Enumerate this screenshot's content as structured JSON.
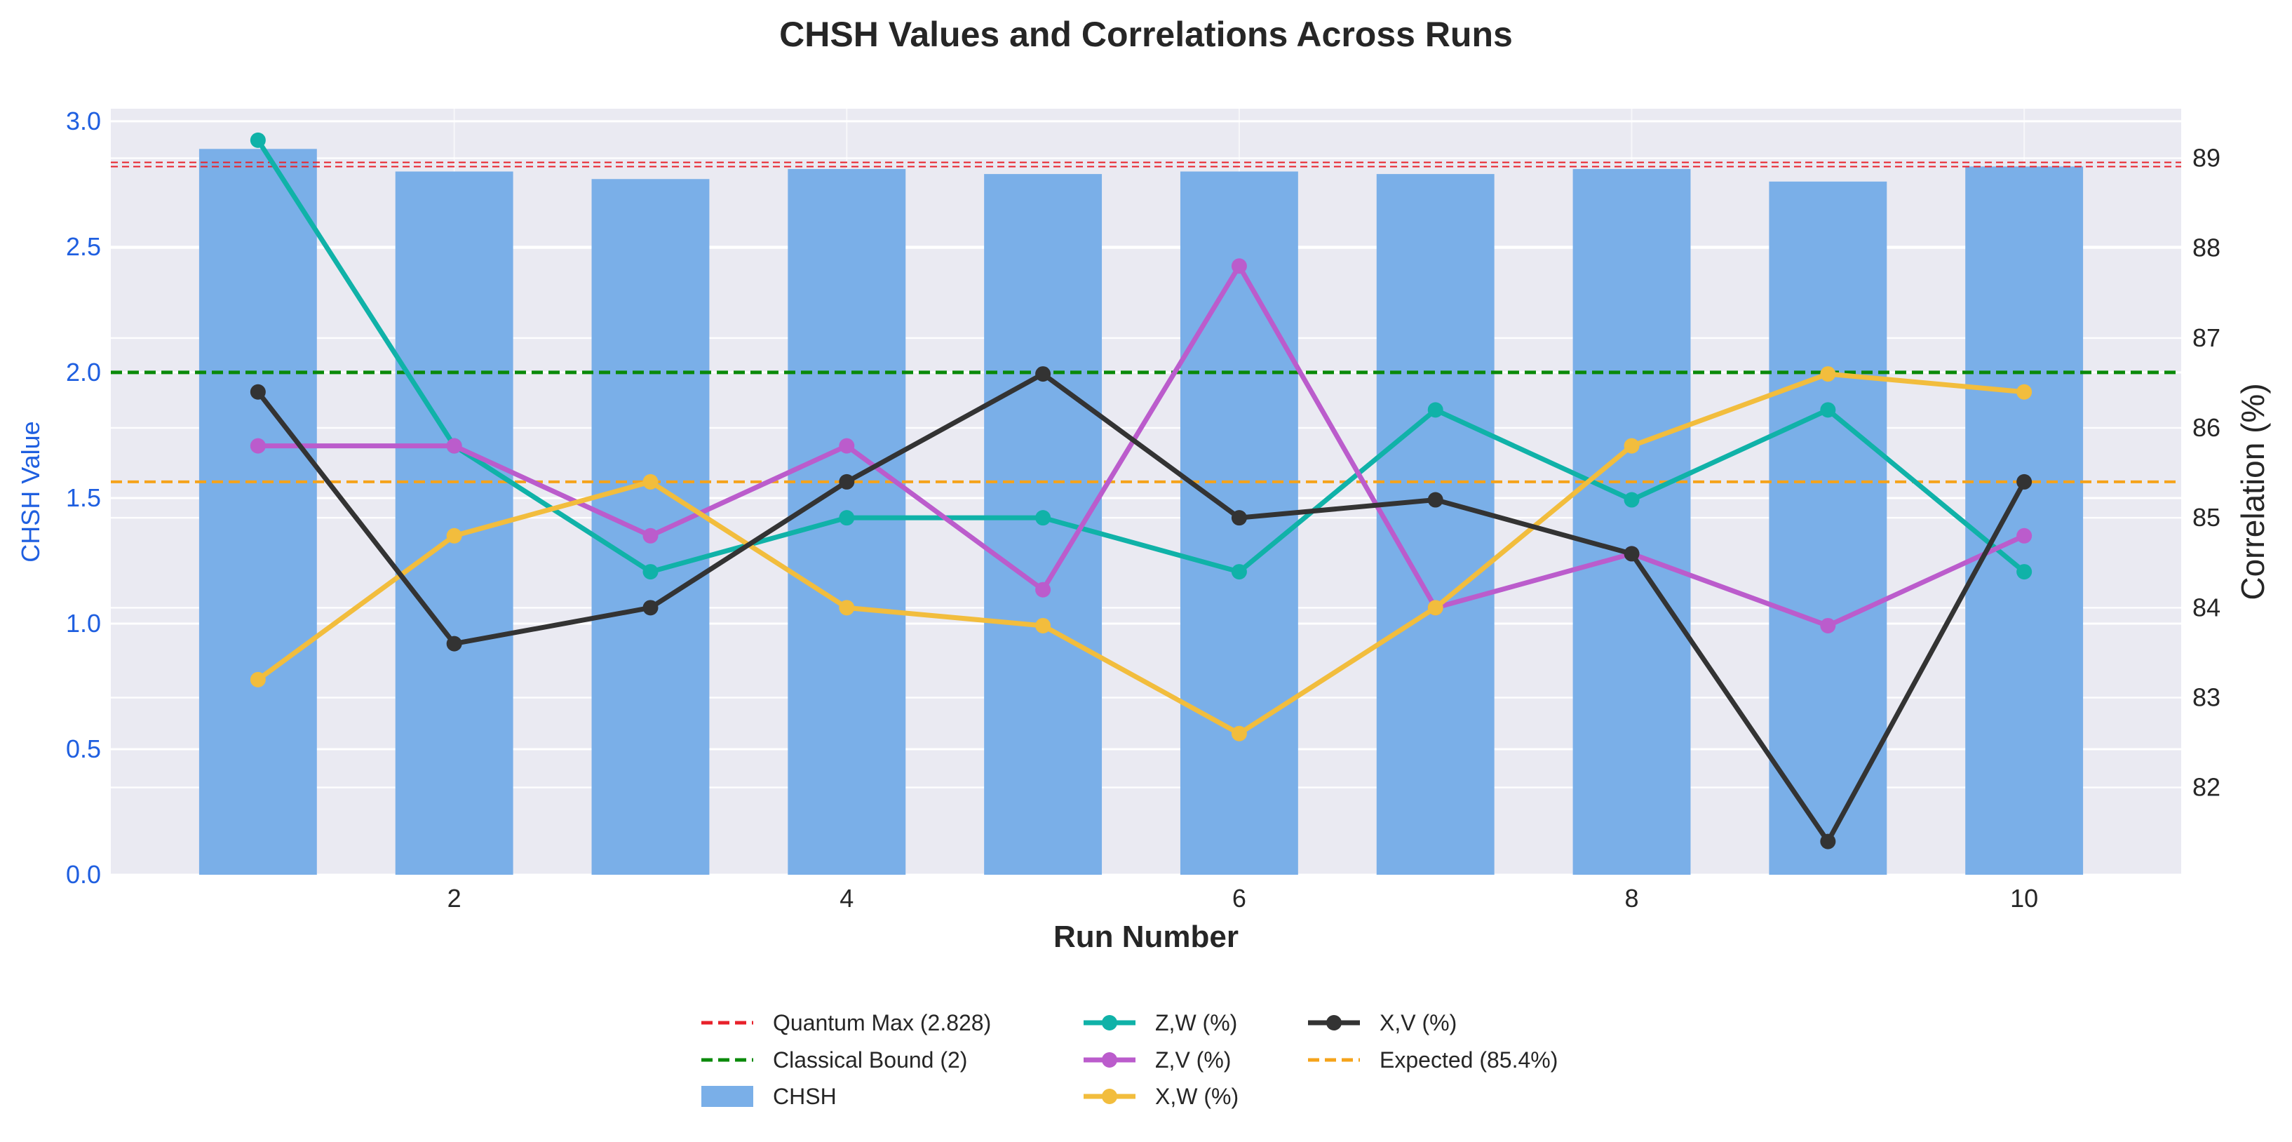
{
  "chart_data": {
    "type": "bar+line",
    "title": "CHSH Values and Correlations Across Runs",
    "xlabel": "Run Number",
    "ylabel_left": "CHSH Value",
    "ylabel_right": "Correlation (%)",
    "x": [
      1,
      2,
      3,
      4,
      5,
      6,
      7,
      8,
      9,
      10
    ],
    "xticks": [
      "2",
      "4",
      "6",
      "8",
      "10"
    ],
    "xlim": [
      0.25,
      10.8
    ],
    "ylim_left": [
      0,
      3.05
    ],
    "yticks_left": [
      "0.0",
      "0.5",
      "1.0",
      "1.5",
      "2.0",
      "2.5",
      "3.0"
    ],
    "ylim_right": [
      81.03,
      89.55
    ],
    "yticks_right": [
      "82",
      "83",
      "84",
      "85",
      "86",
      "87",
      "88",
      "89"
    ],
    "grid": true,
    "legend_position": "bottom-center",
    "bars": {
      "name": "CHSH",
      "color": "#7aafe8",
      "values": [
        2.89,
        2.8,
        2.77,
        2.81,
        2.79,
        2.8,
        2.79,
        2.81,
        2.76,
        2.82
      ]
    },
    "series": [
      {
        "name": "Z,W (%)",
        "color": "#10b2a8",
        "values": [
          89.2,
          85.8,
          84.4,
          85.0,
          85.0,
          84.4,
          86.2,
          85.2,
          86.2,
          84.4
        ]
      },
      {
        "name": "Z,V (%)",
        "color": "#bb5ccc",
        "values": [
          85.8,
          85.8,
          84.8,
          85.8,
          84.2,
          87.8,
          84.0,
          84.6,
          83.8,
          84.8
        ]
      },
      {
        "name": "X,W (%)",
        "color": "#f2bd3d",
        "values": [
          83.2,
          84.8,
          85.4,
          84.0,
          83.8,
          82.6,
          84.0,
          85.8,
          86.6,
          86.4
        ]
      },
      {
        "name": "X,V (%)",
        "color": "#333333",
        "values": [
          86.4,
          83.6,
          84.0,
          85.4,
          86.6,
          85.0,
          85.2,
          84.6,
          81.4,
          85.4
        ]
      }
    ],
    "reference_lines": [
      {
        "name": "Quantum Max (2.828)",
        "axis": "left",
        "value": 2.828,
        "color": "#e8212b",
        "style": "dashed"
      },
      {
        "name": "Classical Bound (2)",
        "axis": "left",
        "value": 2.0,
        "color": "#0a8a0a",
        "style": "dashed"
      },
      {
        "name": "Expected (85.4%)",
        "axis": "right",
        "value": 85.4,
        "color": "#f5a31b",
        "style": "dashed"
      }
    ],
    "colors": {
      "plot_background": "#eaeaf2",
      "grid": "#ffffff",
      "left_axis_text": "#1f5fe0"
    }
  }
}
